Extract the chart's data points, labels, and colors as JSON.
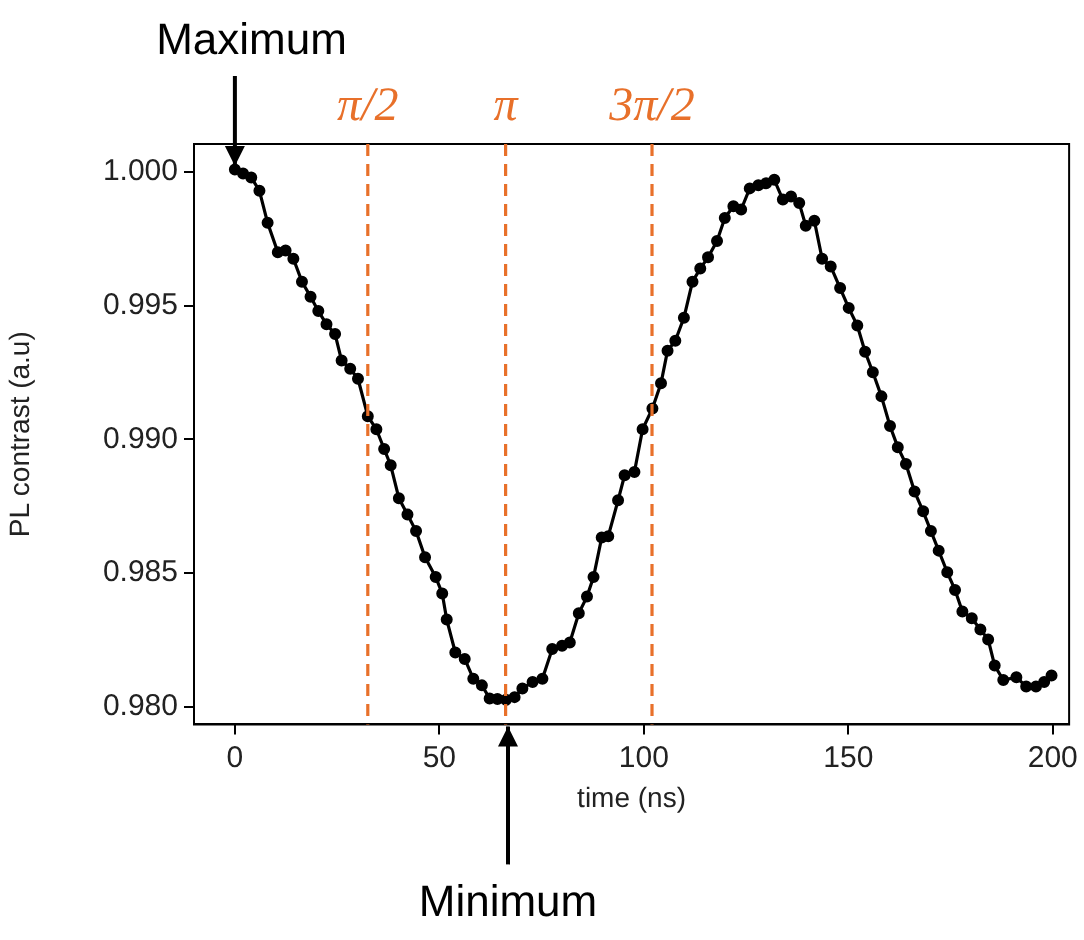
{
  "chart_data": {
    "type": "line",
    "xlabel": "time (ns)",
    "ylabel": "PL contrast (a.u)",
    "x": [
      0,
      2,
      4,
      6,
      8,
      10.5,
      12.4,
      14.3,
      16.4,
      18.5,
      20.4,
      22.4,
      24.5,
      26.1,
      28.2,
      30.1,
      32.5,
      34.6,
      36.5,
      38.1,
      40.1,
      42.2,
      44.3,
      46.5,
      49.1,
      50.7,
      51.8,
      53.9,
      56.2,
      58.3,
      60.4,
      62.3,
      64.2,
      66.3,
      68.4,
      70.3,
      72.8,
      75.2,
      77.6,
      80,
      81.9,
      84.1,
      86.1,
      87.7,
      89.7,
      91.3,
      93.7,
      95.3,
      97.7,
      99.7,
      102.1,
      104.2,
      105.8,
      107.7,
      109.8,
      111.9,
      113.8,
      115.7,
      117.9,
      119.8,
      121.9,
      123.8,
      125.9,
      128,
      129.9,
      131.9,
      134,
      136,
      138,
      139.6,
      141.7,
      143.6,
      145.7,
      148,
      150.1,
      152.2,
      154.1,
      156,
      158.1,
      160.2,
      162.1,
      164.1,
      166.2,
      168.3,
      170.2,
      172.1,
      174.2,
      176.1,
      177.9,
      180.2,
      182.3,
      184.2,
      185.8,
      187.9,
      191.1,
      193.5,
      195.9,
      197.9,
      199.7
    ],
    "series": [
      {
        "color": "#000000",
        "values": [
          1.0001,
          0.99995,
          0.9998,
          0.9993,
          0.9981,
          0.997,
          0.99707,
          0.99676,
          0.9959,
          0.99534,
          0.9948,
          0.99431,
          0.99394,
          0.99295,
          0.99264,
          0.99227,
          0.99087,
          0.99038,
          0.98964,
          0.98903,
          0.9878,
          0.98719,
          0.98657,
          0.98559,
          0.98485,
          0.98424,
          0.98326,
          0.98203,
          0.98179,
          0.98105,
          0.9808,
          0.98031,
          0.98029,
          0.98026,
          0.98036,
          0.98068,
          0.98093,
          0.98105,
          0.98216,
          0.98228,
          0.9824,
          0.9835,
          0.98412,
          0.98485,
          0.98633,
          0.98638,
          0.98772,
          0.98866,
          0.98878,
          0.99038,
          0.99116,
          0.9921,
          0.99332,
          0.99369,
          0.99455,
          0.9959,
          0.99639,
          0.99681,
          0.99742,
          0.99828,
          0.99872,
          0.9986,
          0.99939,
          0.99951,
          0.99958,
          0.99971,
          0.99897,
          0.99909,
          0.99884,
          0.99799,
          0.99818,
          0.99676,
          0.99647,
          0.99566,
          0.99492,
          0.99426,
          0.99328,
          0.99251,
          0.99161,
          0.9905,
          0.98971,
          0.98908,
          0.98805,
          0.98731,
          0.98657,
          0.98584,
          0.98503,
          0.98437,
          0.98356,
          0.98331,
          0.98289,
          0.98252,
          0.98154,
          0.981,
          0.9811,
          0.98076,
          0.98076,
          0.98093,
          0.98117
        ]
      }
    ],
    "xlim": [
      -10,
      204
    ],
    "ylim": [
      0.97934,
      1.00105
    ],
    "xticks": [
      0,
      50,
      100,
      150,
      200
    ],
    "yticks": [
      {
        "value": 0.98,
        "label": "0.980"
      },
      {
        "value": 0.985,
        "label": "0.985"
      },
      {
        "value": 0.99,
        "label": "0.990"
      },
      {
        "value": 0.995,
        "label": "0.995"
      },
      {
        "value": 1,
        "label": "1.000"
      }
    ],
    "ref_lines": [
      {
        "axis": "x",
        "value": 32.5,
        "label": "π/2",
        "color": "#e8702a",
        "line_style": "dashed"
      },
      {
        "axis": "x",
        "value": 66.2,
        "label": "π",
        "color": "#e8702a",
        "line_style": "dashed"
      },
      {
        "axis": "x",
        "value": 102,
        "label": "3π/2",
        "color": "#e8702a",
        "line_style": "dashed"
      }
    ],
    "annotations": [
      {
        "text": "Maximum",
        "x": 0,
        "y": 1
      },
      "Minimum"
    ],
    "grid": false,
    "legend": false,
    "marker": "circle",
    "line_style": "solid"
  }
}
